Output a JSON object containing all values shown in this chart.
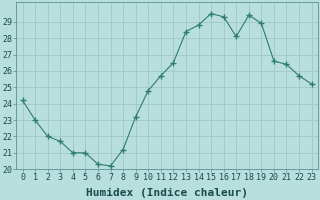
{
  "x": [
    0,
    1,
    2,
    3,
    4,
    5,
    6,
    7,
    8,
    9,
    10,
    11,
    12,
    13,
    14,
    15,
    16,
    17,
    18,
    19,
    20,
    21,
    22,
    23
  ],
  "y": [
    24.2,
    23.0,
    22.0,
    21.7,
    21.0,
    21.0,
    20.3,
    20.2,
    21.2,
    23.2,
    24.8,
    25.7,
    26.5,
    28.4,
    28.8,
    29.5,
    29.3,
    28.1,
    29.4,
    28.9,
    26.6,
    26.4,
    25.7,
    25.2
  ],
  "line_color": "#2e7d6e",
  "marker": "+",
  "marker_size": 4,
  "bg_color": "#b8dede",
  "grid_color": "#9fc8c8",
  "xlabel": "Humidex (Indice chaleur)",
  "ylim": [
    20,
    30
  ],
  "xlim": [
    -0.5,
    23.5
  ],
  "yticks": [
    20,
    21,
    22,
    23,
    24,
    25,
    26,
    27,
    28,
    29
  ],
  "xticks": [
    0,
    1,
    2,
    3,
    4,
    5,
    6,
    7,
    8,
    9,
    10,
    11,
    12,
    13,
    14,
    15,
    16,
    17,
    18,
    19,
    20,
    21,
    22,
    23
  ],
  "tick_label_fontsize": 6,
  "xlabel_fontsize": 8
}
